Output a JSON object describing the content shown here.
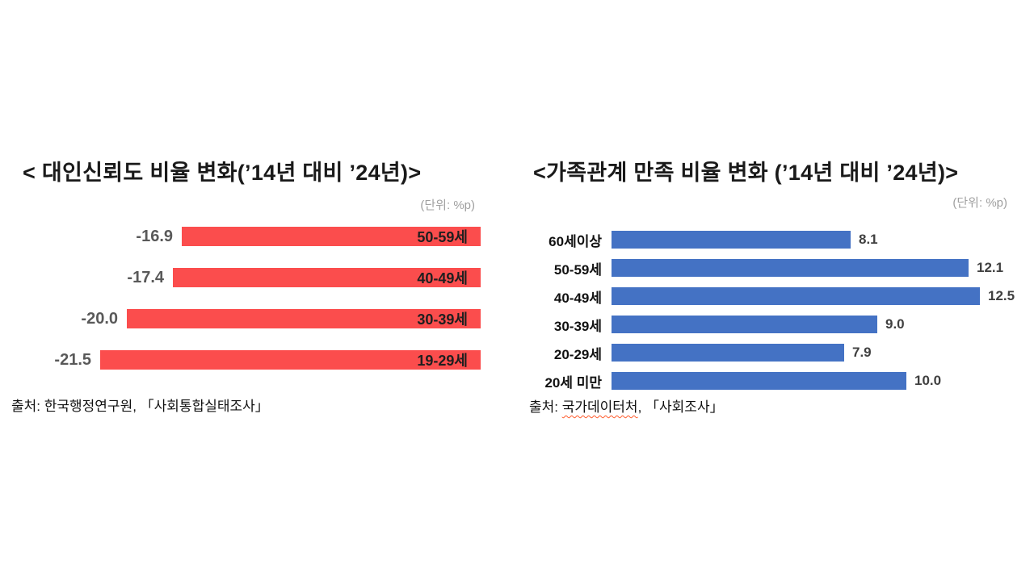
{
  "chart_data": [
    {
      "type": "bar",
      "orientation": "horizontal-right-anchored",
      "title": "< 대인신뢰도 비율 변화(’14년 대비 ’24년)>",
      "unit_label": "(단위: %p)",
      "categories": [
        "50-59세",
        "40-49세",
        "30-39세",
        "19-29세"
      ],
      "values": [
        -16.9,
        -17.4,
        -20.0,
        -21.5
      ],
      "value_labels": [
        "-16.9",
        "-17.4",
        "-20.0",
        "-21.5"
      ],
      "bar_color": "#fb4d4d",
      "category_label_position": "inside-bar-right",
      "value_label_position": "outside-bar-left",
      "xlim": [
        -23,
        0
      ],
      "grid": false,
      "legend": "none",
      "source": "출처: 한국행정연구원, 「사회통합실태조사」"
    },
    {
      "type": "bar",
      "orientation": "horizontal-left-anchored",
      "title": "<가족관계 만족 비율 변화 (’14년 대비 ’24년)>",
      "unit_label": "(단위: %p)",
      "categories": [
        "60세이상",
        "50-59세",
        "40-49세",
        "30-39세",
        "20-29세",
        "20세 미만"
      ],
      "values": [
        8.1,
        12.1,
        12.5,
        9.0,
        7.9,
        10.0
      ],
      "value_labels": [
        "8.1",
        "12.1",
        "12.5",
        "9.0",
        "7.9",
        "10.0"
      ],
      "bar_color": "#4472c4",
      "category_label_position": "outside-bar-left",
      "value_label_position": "outside-bar-right",
      "xlim": [
        0,
        13
      ],
      "grid": false,
      "legend": "none",
      "source": "출처: 국가데이터처, 「사회조사」",
      "spellcheck_word": "국가데이터처",
      "spellcheck_color": "#ff5a2a"
    }
  ]
}
